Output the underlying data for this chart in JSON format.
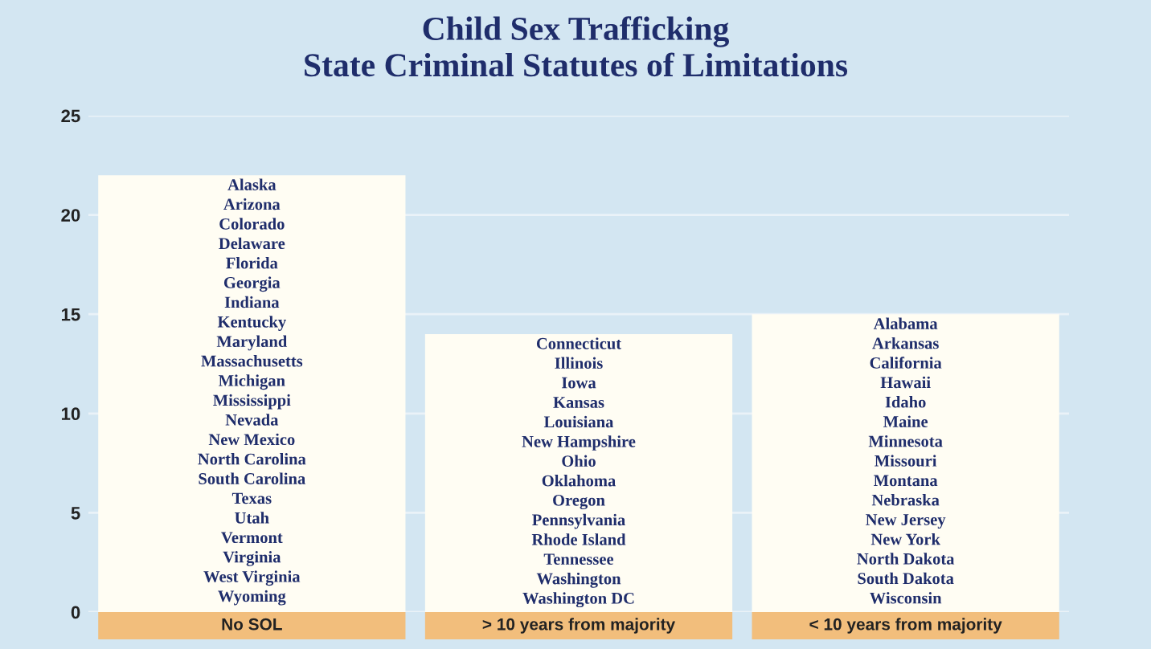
{
  "chart_data": {
    "type": "bar",
    "title": "Child Sex Trafficking\nState Criminal Statutes of Limitations",
    "categories": [
      "No SOL",
      "> 10 years from majority",
      "< 10 years from majority"
    ],
    "values": [
      22,
      14,
      15
    ],
    "color": "#fffdf3",
    "ylim": [
      0,
      25
    ],
    "yticks": [
      0,
      5,
      10,
      15,
      20,
      25
    ],
    "grid": "y",
    "annotations": [
      "Alaska",
      "Arizona",
      "Colorado",
      "Delaware",
      "Florida",
      "Georgia",
      "Indiana",
      "Kentucky",
      "Maryland",
      "Massachusetts",
      "Michigan",
      "Mississippi",
      "Nevada",
      "New Mexico",
      "North Carolina",
      "South Carolina",
      "Texas",
      "Utah",
      "Vermont",
      "Virginia",
      "West Virginia",
      "Wyoming",
      "Connecticut",
      "Illinois",
      "Iowa",
      "Kansas",
      "Louisiana",
      "New Hampshire",
      "Ohio",
      "Oklahoma",
      "Oregon",
      "Pennsylvania",
      "Rhode Island",
      "Tennessee",
      "Washington",
      "Washington DC",
      "Alabama",
      "Arkansas",
      "California",
      "Hawaii",
      "Idaho",
      "Maine",
      "Minnesota",
      "Missouri",
      "Montana",
      "Nebraska",
      "New Jersey",
      "New York",
      "North Dakota",
      "South Dakota",
      "Wisconsin"
    ]
  }
}
